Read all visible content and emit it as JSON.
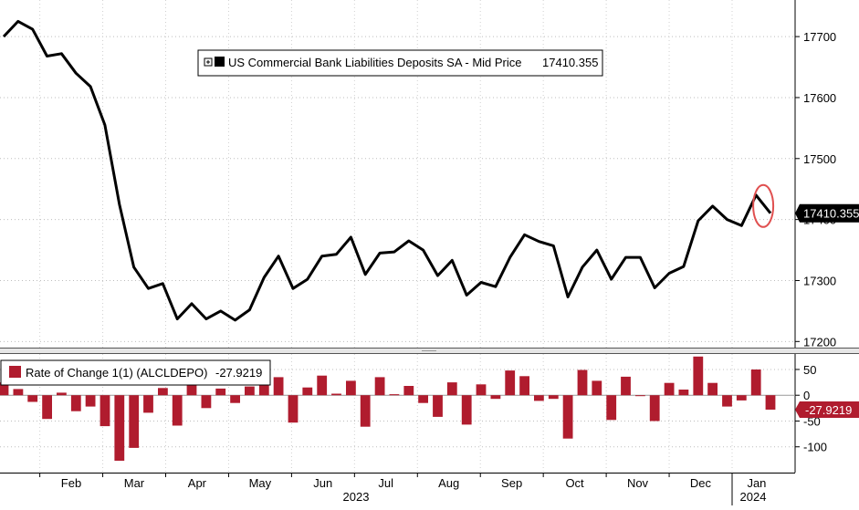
{
  "chart_data": [
    {
      "type": "line",
      "series": [
        {
          "name": "US Commercial Bank Liabilities Deposits SA - Mid Price",
          "last_value_label": "17410.355",
          "color": "#000000",
          "values": [
            17700,
            17725,
            17712,
            17668,
            17672,
            17640,
            17618,
            17555,
            17425,
            17322,
            17287,
            17295,
            17237,
            17262,
            17237,
            17250,
            17235,
            17252,
            17305,
            17340,
            17287,
            17302,
            17340,
            17343,
            17371,
            17310,
            17345,
            17347,
            17365,
            17350,
            17308,
            17333,
            17276,
            17297,
            17290,
            17338,
            17375,
            17364,
            17357,
            17273,
            17322,
            17350,
            17302,
            17338,
            17338,
            17288,
            17312,
            17323,
            17398,
            17422,
            17400,
            17390,
            17440,
            17410.355
          ]
        }
      ],
      "ylim": [
        17190,
        17760
      ],
      "yticks": [
        "17700",
        "17600",
        "17500",
        "17400",
        "17300",
        "17200"
      ],
      "grid": true,
      "legend": "top-center",
      "annotations": [
        "red-ellipse-around-last-points"
      ]
    },
    {
      "type": "bar",
      "series": [
        {
          "name": "Rate of Change 1(1) (ALCLDEPO)",
          "last_value_label": "-27.9219",
          "color": "#b01c2e",
          "values": [
            25,
            12,
            -13,
            -46,
            5,
            -31,
            -22,
            -60,
            -127,
            -102,
            -34,
            14,
            -59,
            25,
            -25,
            13,
            -15,
            17,
            53,
            35,
            -53,
            15,
            38,
            3,
            28,
            -61,
            35,
            2,
            18,
            -15,
            -42,
            25,
            -57,
            21,
            -7,
            48,
            37,
            -11,
            -7,
            -84,
            49,
            28,
            -48,
            36,
            0,
            -50,
            24,
            11,
            75,
            24,
            -22,
            -10,
            50,
            -27.9219
          ]
        }
      ],
      "ylim": [
        -150,
        80
      ],
      "yticks": [
        "50",
        "0",
        "-50",
        "-100"
      ],
      "grid": true,
      "legend": "top-left"
    }
  ],
  "x_axis": {
    "months": [
      "Feb",
      "Mar",
      "Apr",
      "May",
      "Jun",
      "Jul",
      "Aug",
      "Sep",
      "Oct",
      "Nov",
      "Dec",
      "Jan"
    ],
    "years": [
      "2023",
      "2024"
    ]
  }
}
